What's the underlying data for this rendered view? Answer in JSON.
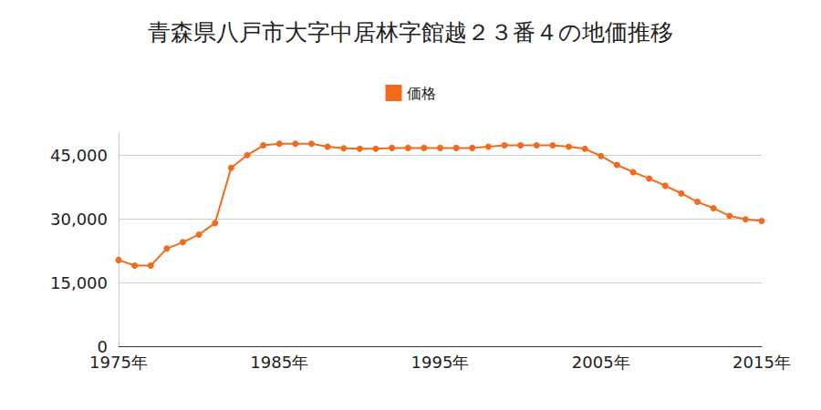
{
  "chart_data": {
    "type": "line",
    "title": "青森県八戸市大字中居林字館越２３番４の地価推移",
    "series": [
      {
        "name": "価格",
        "color": "#f26b1d",
        "marker": "circle",
        "x": [
          1975,
          1976,
          1977,
          1978,
          1979,
          1980,
          1981,
          1982,
          1983,
          1984,
          1985,
          1986,
          1987,
          1988,
          1989,
          1990,
          1991,
          1992,
          1993,
          1994,
          1995,
          1996,
          1997,
          1998,
          1999,
          2000,
          2001,
          2002,
          2003,
          2004,
          2005,
          2006,
          2007,
          2008,
          2009,
          2010,
          2011,
          2012,
          2013,
          2014,
          2015
        ],
        "values": [
          20300,
          19000,
          19000,
          23000,
          24500,
          26300,
          29000,
          42000,
          45000,
          47300,
          47700,
          47700,
          47700,
          47000,
          46600,
          46500,
          46500,
          46700,
          46700,
          46700,
          46700,
          46700,
          46700,
          47000,
          47300,
          47300,
          47300,
          47300,
          47000,
          46500,
          44800,
          42700,
          41000,
          39500,
          37800,
          36000,
          34000,
          32500,
          30700,
          29900,
          29500
        ]
      }
    ],
    "xlim": [
      1975,
      2015
    ],
    "xticks": [
      {
        "value": 1975,
        "label": "1975年"
      },
      {
        "value": 1985,
        "label": "1985年"
      },
      {
        "value": 1995,
        "label": "1995年"
      },
      {
        "value": 2005,
        "label": "2005年"
      },
      {
        "value": 2015,
        "label": "2015年"
      }
    ],
    "ylim": [
      0,
      50000
    ],
    "yticks": [
      0,
      {
        "value": 15000,
        "label": "15,000"
      },
      {
        "value": 30000,
        "label": "30,000"
      },
      {
        "value": 45000,
        "label": "45,000"
      }
    ],
    "grid": true,
    "legend": "top"
  }
}
